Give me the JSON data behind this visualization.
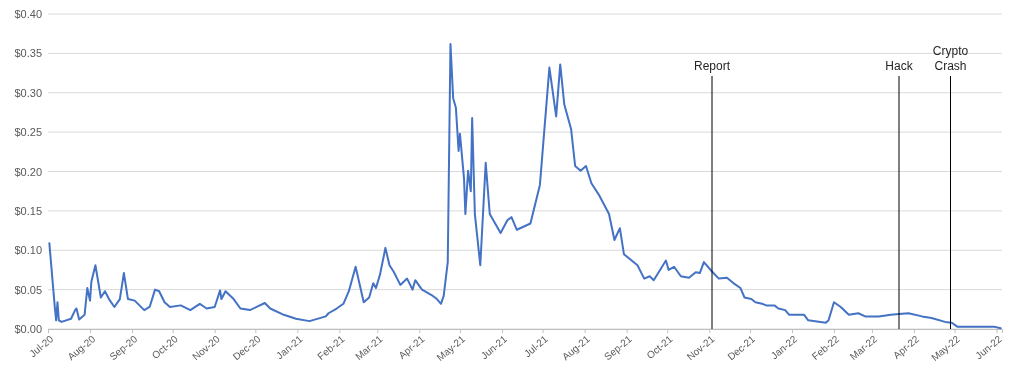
{
  "chart_data": {
    "type": "line",
    "x": [
      "2020-07-02",
      "2020-07-06",
      "2020-07-07",
      "2020-07-08",
      "2020-07-09",
      "2020-07-11",
      "2020-07-18",
      "2020-07-21",
      "2020-07-22",
      "2020-07-24",
      "2020-07-28",
      "2020-07-30",
      "2020-08-01",
      "2020-08-02",
      "2020-08-05",
      "2020-08-09",
      "2020-08-12",
      "2020-08-15",
      "2020-08-19",
      "2020-08-23",
      "2020-08-26",
      "2020-08-29",
      "2020-09-03",
      "2020-09-10",
      "2020-09-14",
      "2020-09-18",
      "2020-09-21",
      "2020-09-25",
      "2020-09-29",
      "2020-10-07",
      "2020-10-14",
      "2020-10-21",
      "2020-10-26",
      "2020-11-01",
      "2020-11-05",
      "2020-11-06",
      "2020-11-09",
      "2020-11-15",
      "2020-11-20",
      "2020-11-27",
      "2020-12-02",
      "2020-12-08",
      "2020-12-12",
      "2020-12-22",
      "2020-12-31",
      "2021-01-10",
      "2021-01-22",
      "2021-01-24",
      "2021-01-30",
      "2021-02-04",
      "2021-02-08",
      "2021-02-13",
      "2021-02-19",
      "2021-02-23",
      "2021-02-26",
      "2021-02-28",
      "2021-03-03",
      "2021-03-07",
      "2021-03-10",
      "2021-03-13",
      "2021-03-18",
      "2021-03-23",
      "2021-03-27",
      "2021-03-29",
      "2021-04-03",
      "2021-04-11",
      "2021-04-14",
      "2021-04-17",
      "2021-04-19",
      "2021-04-22",
      "2021-04-24",
      "2021-04-26",
      "2021-04-28",
      "2021-04-30",
      "2021-05-01",
      "2021-05-04",
      "2021-05-05",
      "2021-05-07",
      "2021-05-09",
      "2021-05-10",
      "2021-05-12",
      "2021-05-16",
      "2021-05-20",
      "2021-05-23",
      "2021-05-31",
      "2021-06-05",
      "2021-06-08",
      "2021-06-12",
      "2021-06-22",
      "2021-06-29",
      "2021-07-06",
      "2021-07-11",
      "2021-07-14",
      "2021-07-17",
      "2021-07-22",
      "2021-07-25",
      "2021-07-29",
      "2021-08-02",
      "2021-08-06",
      "2021-08-12",
      "2021-08-19",
      "2021-08-23",
      "2021-08-27",
      "2021-08-30",
      "2021-09-09",
      "2021-09-14",
      "2021-09-18",
      "2021-09-21",
      "2021-09-30",
      "2021-10-02",
      "2021-10-06",
      "2021-10-11",
      "2021-10-17",
      "2021-10-22",
      "2021-10-25",
      "2021-10-28",
      "2021-11-03",
      "2021-11-08",
      "2021-11-14",
      "2021-11-19",
      "2021-11-24",
      "2021-11-27",
      "2021-12-02",
      "2021-12-05",
      "2021-12-10",
      "2021-12-13",
      "2021-12-19",
      "2021-12-22",
      "2021-12-27",
      "2021-12-30",
      "2022-01-10",
      "2022-01-13",
      "2022-01-26",
      "2022-01-28",
      "2022-02-01",
      "2022-02-06",
      "2022-02-12",
      "2022-02-19",
      "2022-02-24",
      "2022-03-06",
      "2022-03-15",
      "2022-03-21",
      "2022-03-28",
      "2022-04-07",
      "2022-04-14",
      "2022-04-24",
      "2022-04-29",
      "2022-05-03",
      "2022-05-18",
      "2022-05-30",
      "2022-06-04"
    ],
    "series": [
      {
        "color": "#4472c4",
        "values": [
          0.109,
          0.028,
          0.011,
          0.034,
          0.011,
          0.009,
          0.013,
          0.024,
          0.026,
          0.012,
          0.018,
          0.052,
          0.036,
          0.06,
          0.081,
          0.04,
          0.048,
          0.038,
          0.028,
          0.038,
          0.071,
          0.038,
          0.036,
          0.024,
          0.028,
          0.05,
          0.048,
          0.034,
          0.028,
          0.03,
          0.024,
          0.032,
          0.026,
          0.028,
          0.049,
          0.038,
          0.048,
          0.038,
          0.026,
          0.024,
          0.028,
          0.033,
          0.026,
          0.018,
          0.013,
          0.01,
          0.016,
          0.02,
          0.026,
          0.032,
          0.048,
          0.079,
          0.034,
          0.04,
          0.058,
          0.052,
          0.069,
          0.103,
          0.081,
          0.073,
          0.056,
          0.064,
          0.05,
          0.062,
          0.05,
          0.042,
          0.038,
          0.032,
          0.042,
          0.085,
          0.362,
          0.293,
          0.281,
          0.226,
          0.248,
          0.191,
          0.146,
          0.201,
          0.175,
          0.268,
          0.146,
          0.081,
          0.211,
          0.146,
          0.122,
          0.138,
          0.142,
          0.126,
          0.134,
          0.183,
          0.332,
          0.27,
          0.336,
          0.285,
          0.254,
          0.207,
          0.201,
          0.207,
          0.185,
          0.169,
          0.146,
          0.113,
          0.128,
          0.095,
          0.081,
          0.064,
          0.067,
          0.062,
          0.087,
          0.075,
          0.079,
          0.067,
          0.065,
          0.072,
          0.071,
          0.085,
          0.073,
          0.064,
          0.065,
          0.058,
          0.052,
          0.04,
          0.038,
          0.034,
          0.032,
          0.03,
          0.03,
          0.026,
          0.024,
          0.018,
          0.018,
          0.011,
          0.008,
          0.011,
          0.034,
          0.028,
          0.018,
          0.02,
          0.016,
          0.016,
          0.018,
          0.019,
          0.02,
          0.016,
          0.014,
          0.009,
          0.008,
          0.003,
          0.003,
          0.003,
          0.001
        ]
      }
    ],
    "xlim": [
      "2020-07-01",
      "2022-06-05"
    ],
    "xticks": [
      {
        "value": "2020-07-01",
        "label": "Jul-20"
      },
      {
        "value": "2020-08-01",
        "label": "Aug-20"
      },
      {
        "value": "2020-09-01",
        "label": "Sep-20"
      },
      {
        "value": "2020-10-01",
        "label": "Oct-20"
      },
      {
        "value": "2020-11-01",
        "label": "Nov-20"
      },
      {
        "value": "2020-12-01",
        "label": "Dec-20"
      },
      {
        "value": "2021-01-01",
        "label": "Jan-21"
      },
      {
        "value": "2021-02-01",
        "label": "Feb-21"
      },
      {
        "value": "2021-03-01",
        "label": "Mar-21"
      },
      {
        "value": "2021-04-01",
        "label": "Apr-21"
      },
      {
        "value": "2021-05-01",
        "label": "May-21"
      },
      {
        "value": "2021-06-01",
        "label": "Jun-21"
      },
      {
        "value": "2021-07-01",
        "label": "Jul-21"
      },
      {
        "value": "2021-08-01",
        "label": "Aug-21"
      },
      {
        "value": "2021-09-01",
        "label": "Sep-21"
      },
      {
        "value": "2021-10-01",
        "label": "Oct-21"
      },
      {
        "value": "2021-11-01",
        "label": "Nov-21"
      },
      {
        "value": "2021-12-01",
        "label": "Dec-21"
      },
      {
        "value": "2022-01-01",
        "label": "Jan-22"
      },
      {
        "value": "2022-02-01",
        "label": "Feb-22"
      },
      {
        "value": "2022-03-01",
        "label": "Mar-22"
      },
      {
        "value": "2022-04-01",
        "label": "Apr-22"
      },
      {
        "value": "2022-05-01",
        "label": "May-22"
      },
      {
        "value": "2022-06-01",
        "label": "Jun-22"
      }
    ],
    "ylim": [
      0,
      0.4
    ],
    "yticks": [
      {
        "value": 0,
        "label": "$0.00"
      },
      {
        "value": 0.05,
        "label": "$0.05"
      },
      {
        "value": 0.1,
        "label": "$0.10"
      },
      {
        "value": 0.15,
        "label": "$0.15"
      },
      {
        "value": 0.2,
        "label": "$0.20"
      },
      {
        "value": 0.25,
        "label": "$0.25"
      },
      {
        "value": 0.3,
        "label": "$0.30"
      },
      {
        "value": 0.35,
        "label": "$0.35"
      },
      {
        "value": 0.4,
        "label": "$0.40"
      }
    ],
    "grid": "y",
    "ref_lines": [
      {
        "axis": "x",
        "value": "2021-11-03",
        "label": "Report",
        "color": "#000000"
      },
      {
        "axis": "x",
        "value": "2022-03-21",
        "label": "Hack",
        "color": "#000000"
      },
      {
        "axis": "x",
        "value": "2022-04-28",
        "label": "Crypto Crash",
        "color": "#000000"
      }
    ]
  }
}
